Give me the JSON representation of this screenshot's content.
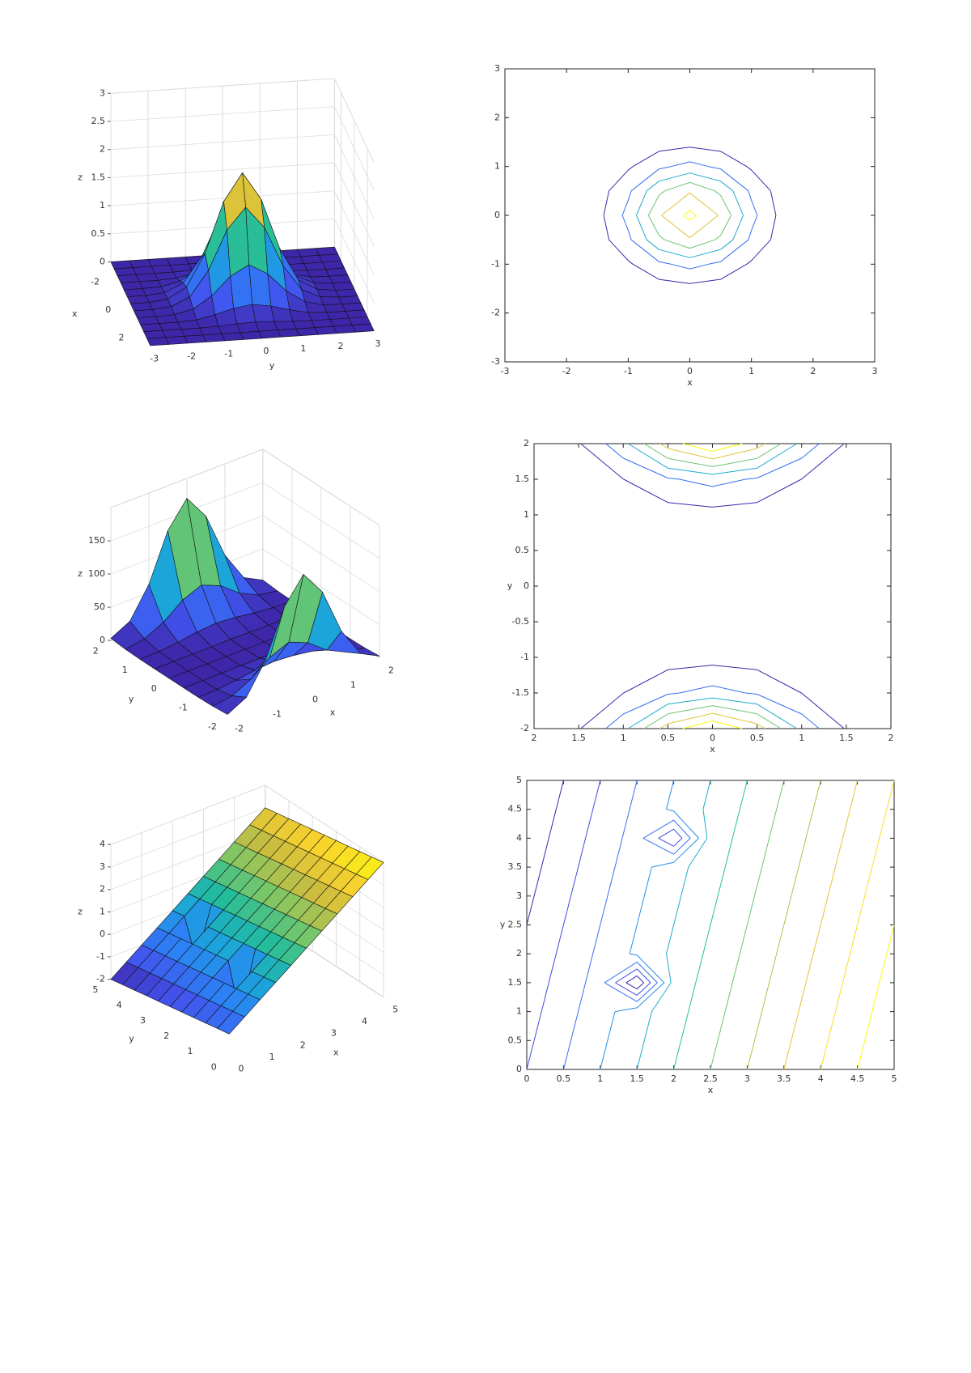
{
  "chart_data": [
    {
      "type": "surface",
      "xlabel": "x",
      "ylabel": "y",
      "zlabel": "z",
      "x": [
        -3,
        -2.5,
        -2,
        -1.5,
        -1,
        -0.5,
        0,
        0.5,
        1,
        1.5,
        2,
        2.5,
        3
      ],
      "y": [
        -3,
        -2.5,
        -2,
        -1.5,
        -1,
        -0.5,
        0,
        0.5,
        1,
        1.5,
        2,
        2.5,
        3
      ],
      "z": [
        [
          0,
          0,
          0,
          0,
          0,
          0,
          0,
          0,
          0,
          0,
          0,
          0,
          0
        ],
        [
          0,
          0,
          0,
          0,
          0,
          0,
          0,
          0,
          0,
          0,
          0,
          0,
          0
        ],
        [
          0,
          0,
          0,
          0,
          0.01,
          0.03,
          0.04,
          0.03,
          0.01,
          0,
          0,
          0,
          0
        ],
        [
          0,
          0,
          0,
          0.02,
          0.09,
          0.18,
          0.23,
          0.18,
          0.09,
          0.02,
          0,
          0,
          0
        ],
        [
          0,
          0,
          0.01,
          0.09,
          0.3,
          0.63,
          0.81,
          0.63,
          0.3,
          0.09,
          0.01,
          0,
          0
        ],
        [
          0,
          0,
          0.03,
          0.18,
          0.63,
          1.33,
          1.71,
          1.33,
          0.63,
          0.18,
          0.03,
          0,
          0
        ],
        [
          0,
          0,
          0.04,
          0.23,
          0.81,
          1.71,
          2.2,
          1.71,
          0.81,
          0.23,
          0.04,
          0,
          0
        ],
        [
          0,
          0,
          0.03,
          0.18,
          0.63,
          1.33,
          1.71,
          1.33,
          0.63,
          0.18,
          0.03,
          0,
          0
        ],
        [
          0,
          0,
          0.01,
          0.09,
          0.3,
          0.63,
          0.81,
          0.63,
          0.3,
          0.09,
          0.01,
          0,
          0
        ],
        [
          0,
          0,
          0,
          0.02,
          0.09,
          0.18,
          0.23,
          0.18,
          0.09,
          0.02,
          0,
          0,
          0
        ],
        [
          0,
          0,
          0,
          0,
          0.01,
          0.03,
          0.04,
          0.03,
          0.01,
          0,
          0,
          0,
          0
        ],
        [
          0,
          0,
          0,
          0,
          0,
          0,
          0,
          0,
          0,
          0,
          0,
          0,
          0
        ],
        [
          0,
          0,
          0,
          0,
          0,
          0,
          0,
          0,
          0,
          0,
          0,
          0,
          0
        ]
      ],
      "xlim": [
        -3,
        3
      ],
      "ylim": [
        -3,
        3
      ],
      "zlim": [
        0,
        3
      ],
      "xticks": [
        -2,
        0,
        2
      ],
      "yticks": [
        -3,
        -2,
        -1,
        0,
        1,
        2,
        3
      ],
      "zticks": [
        0,
        0.5,
        1,
        1.5,
        2,
        2.5,
        3
      ],
      "grid": true,
      "colormap": [
        "#3e26a8",
        "#4254ee",
        "#2c81f5",
        "#1ba5d9",
        "#24bd9c",
        "#7dc766",
        "#cdbd3e",
        "#f9d22e",
        "#f9fb0e"
      ]
    },
    {
      "type": "contour",
      "xlabel": "x",
      "x": [
        -3,
        -2.5,
        -2,
        -1.5,
        -1,
        -0.5,
        0,
        0.5,
        1,
        1.5,
        2,
        2.5,
        3
      ],
      "y": [
        -3,
        -2.5,
        -2,
        -1.5,
        -1,
        -0.5,
        0,
        0.5,
        1,
        1.5,
        2,
        2.5,
        3
      ],
      "z": [
        [
          0,
          0,
          0,
          0,
          0,
          0,
          0,
          0,
          0,
          0,
          0,
          0,
          0
        ],
        [
          0,
          0,
          0,
          0,
          0,
          0,
          0,
          0,
          0,
          0,
          0,
          0,
          0
        ],
        [
          0,
          0,
          0,
          0,
          0.01,
          0.03,
          0.04,
          0.03,
          0.01,
          0,
          0,
          0,
          0
        ],
        [
          0,
          0,
          0,
          0.02,
          0.09,
          0.18,
          0.23,
          0.18,
          0.09,
          0.02,
          0,
          0,
          0
        ],
        [
          0,
          0,
          0.01,
          0.09,
          0.3,
          0.63,
          0.81,
          0.63,
          0.3,
          0.09,
          0.01,
          0,
          0
        ],
        [
          0,
          0,
          0.03,
          0.18,
          0.63,
          1.33,
          1.71,
          1.33,
          0.63,
          0.18,
          0.03,
          0,
          0
        ],
        [
          0,
          0,
          0.04,
          0.23,
          0.81,
          1.71,
          2.2,
          1.71,
          0.81,
          0.23,
          0.04,
          0,
          0
        ],
        [
          0,
          0,
          0.03,
          0.18,
          0.63,
          1.33,
          1.71,
          1.33,
          0.63,
          0.18,
          0.03,
          0,
          0
        ],
        [
          0,
          0,
          0.01,
          0.09,
          0.3,
          0.63,
          0.81,
          0.63,
          0.3,
          0.09,
          0.01,
          0,
          0
        ],
        [
          0,
          0,
          0,
          0.02,
          0.09,
          0.18,
          0.23,
          0.18,
          0.09,
          0.02,
          0,
          0,
          0
        ],
        [
          0,
          0,
          0,
          0,
          0.01,
          0.03,
          0.04,
          0.03,
          0.01,
          0,
          0,
          0,
          0
        ],
        [
          0,
          0,
          0,
          0,
          0,
          0,
          0,
          0,
          0,
          0,
          0,
          0,
          0
        ],
        [
          0,
          0,
          0,
          0,
          0,
          0,
          0,
          0,
          0,
          0,
          0,
          0,
          0
        ]
      ],
      "levels": [
        0.35,
        0.7,
        1.05,
        1.4,
        1.75,
        2.1
      ],
      "xlim": [
        -3,
        3
      ],
      "ylim": [
        -3,
        3
      ],
      "xticks": [
        -3,
        -2,
        -1,
        0,
        1,
        2,
        3
      ],
      "yticks": [
        -3,
        -2,
        -1,
        0,
        1,
        2,
        3
      ],
      "colormap": [
        "#3e26a8",
        "#4254ee",
        "#2c81f5",
        "#1ba5d9",
        "#24bd9c",
        "#7dc766",
        "#cdbd3e",
        "#f9d22e",
        "#f9fb0e"
      ]
    },
    {
      "type": "surface",
      "xlabel": "x",
      "ylabel": "y",
      "zlabel": "z",
      "x": [
        -2,
        -1.5,
        -1,
        -0.5,
        0,
        0.5,
        1,
        1.5,
        2
      ],
      "y": [
        -2,
        -1.5,
        -1,
        -0.5,
        0,
        0.5,
        1,
        1.5,
        2
      ],
      "z": [
        [
          3.1,
          17.9,
          62.5,
          132.4,
          170,
          132.4,
          62.5,
          17.9,
          3.1
        ],
        [
          1,
          5.7,
          19.8,
          41.9,
          53.8,
          41.9,
          19.8,
          5.7,
          1
        ],
        [
          0.2,
          1.1,
          3.9,
          8.3,
          10.6,
          8.3,
          3.9,
          1.1,
          0.2
        ],
        [
          0,
          0.1,
          0.2,
          0.5,
          0.7,
          0.5,
          0.2,
          0.1,
          0
        ],
        [
          0,
          0,
          0,
          0,
          0,
          0,
          0,
          0,
          0
        ],
        [
          0,
          0.1,
          0.2,
          0.5,
          0.7,
          0.5,
          0.2,
          0.1,
          0
        ],
        [
          0.2,
          1.1,
          3.9,
          8.3,
          10.6,
          8.3,
          3.9,
          1.1,
          0.2
        ],
        [
          1,
          5.7,
          19.8,
          41.9,
          53.8,
          41.9,
          19.8,
          5.7,
          1
        ],
        [
          3.1,
          17.9,
          62.5,
          132.4,
          170,
          132.4,
          62.5,
          17.9,
          3.1
        ]
      ],
      "xlim": [
        -2,
        2
      ],
      "ylim": [
        -2,
        2
      ],
      "zlim": [
        0,
        200
      ],
      "xticks": [
        -2,
        -1,
        0,
        1,
        2
      ],
      "yticks": [
        -2,
        -1,
        0,
        1,
        2
      ],
      "zticks": [
        0,
        50,
        100,
        150
      ],
      "grid": true,
      "colormap": [
        "#3e26a8",
        "#4254ee",
        "#2c81f5",
        "#1ba5d9",
        "#24bd9c",
        "#7dc766",
        "#cdbd3e",
        "#f9d22e",
        "#f9fb0e"
      ]
    },
    {
      "type": "contour",
      "xlabel": "x",
      "ylabel": "y",
      "x": [
        -2,
        -1.5,
        -1,
        -0.5,
        0,
        0.5,
        1,
        1.5,
        2
      ],
      "y": [
        -2,
        -1.5,
        -1,
        -0.5,
        0,
        0.5,
        1,
        1.5,
        2
      ],
      "z": [
        [
          3.1,
          17.9,
          62.5,
          132.4,
          170,
          132.4,
          62.5,
          17.9,
          3.1
        ],
        [
          1,
          5.7,
          19.8,
          41.9,
          53.8,
          41.9,
          19.8,
          5.7,
          1
        ],
        [
          0.2,
          1.1,
          3.9,
          8.3,
          10.6,
          8.3,
          3.9,
          1.1,
          0.2
        ],
        [
          0,
          0.1,
          0.2,
          0.5,
          0.7,
          0.5,
          0.2,
          0.1,
          0
        ],
        [
          0,
          0,
          0,
          0,
          0,
          0,
          0,
          0,
          0
        ],
        [
          0,
          0.1,
          0.2,
          0.5,
          0.7,
          0.5,
          0.2,
          0.1,
          0
        ],
        [
          0.2,
          1.1,
          3.9,
          8.3,
          10.6,
          8.3,
          3.9,
          1.1,
          0.2
        ],
        [
          1,
          5.7,
          19.8,
          41.9,
          53.8,
          41.9,
          19.8,
          5.7,
          1
        ],
        [
          3.1,
          17.9,
          62.5,
          132.4,
          170,
          132.4,
          62.5,
          17.9,
          3.1
        ]
      ],
      "levels": [
        20,
        45,
        70,
        95,
        120,
        145
      ],
      "xlim": [
        -2,
        2
      ],
      "ylim": [
        -2,
        2
      ],
      "xticks": [
        {
          "value": -2,
          "label": "2"
        },
        {
          "value": -1.5,
          "label": "1.5"
        },
        {
          "value": -1,
          "label": "1"
        },
        {
          "value": -0.5,
          "label": "0.5"
        },
        0,
        0.5,
        1,
        1.5,
        2
      ],
      "yticks": [
        -2,
        -1.5,
        -1,
        -0.5,
        0,
        0.5,
        1,
        1.5,
        2
      ],
      "colormap": [
        "#3e26a8",
        "#4254ee",
        "#2c81f5",
        "#1ba5d9",
        "#24bd9c",
        "#7dc766",
        "#cdbd3e",
        "#f9d22e",
        "#f9fb0e"
      ]
    },
    {
      "type": "surface",
      "xlabel": "x",
      "ylabel": "y",
      "zlabel": "z",
      "x": [
        0,
        0.5,
        1,
        1.5,
        2,
        2.5,
        3,
        3.5,
        4,
        4.5,
        5
      ],
      "y": [
        0,
        0.5,
        1,
        1.5,
        2,
        2.5,
        3,
        3.5,
        4,
        4.5,
        5
      ],
      "z": [
        [
          -1,
          -0.5,
          0,
          0.5,
          1,
          1.5,
          2,
          2.5,
          3,
          3.5,
          4
        ],
        [
          -1.1,
          -0.6,
          -0.1,
          0.4,
          0.9,
          1.4,
          1.9,
          2.4,
          2.9,
          3.4,
          3.9
        ],
        [
          -1.2,
          -0.7,
          -0.2,
          0.3,
          0.8,
          1.3,
          1.8,
          2.3,
          2.8,
          3.3,
          3.8
        ],
        [
          -1.3,
          -0.8,
          -0.3,
          -2,
          0.7,
          1.2,
          1.7,
          2.2,
          2.7,
          3.2,
          3.7
        ],
        [
          -1.4,
          -0.9,
          -0.4,
          0.1,
          0.6,
          1.1,
          1.6,
          2.1,
          2.6,
          3.1,
          3.6
        ],
        [
          -1.5,
          -1,
          -0.5,
          0,
          0.5,
          1,
          1.5,
          2,
          2.5,
          3,
          3.5
        ],
        [
          -1.6,
          -1.1,
          -0.6,
          -0.1,
          0.4,
          0.9,
          1.4,
          1.9,
          2.4,
          2.9,
          3.4
        ],
        [
          -1.7,
          -1.2,
          -0.7,
          -0.2,
          0.3,
          0.8,
          1.3,
          1.8,
          2.3,
          2.8,
          3.3
        ],
        [
          -1.8,
          -1.3,
          -0.8,
          -0.3,
          -1.5,
          0.7,
          1.2,
          1.7,
          2.2,
          2.7,
          3.2
        ],
        [
          -1.9,
          -1.4,
          -0.9,
          -0.4,
          0.1,
          0.6,
          1.1,
          1.6,
          2.1,
          2.6,
          3.1
        ],
        [
          -2,
          -1.5,
          -1,
          -0.5,
          0,
          0.5,
          1,
          1.5,
          2,
          2.5,
          3
        ]
      ],
      "xlim": [
        0,
        5
      ],
      "ylim": [
        0,
        5
      ],
      "zlim": [
        -2,
        4
      ],
      "xticks": [
        0,
        1,
        2,
        3,
        4,
        5
      ],
      "yticks": [
        0,
        1,
        2,
        3,
        4,
        5
      ],
      "zticks": [
        -2,
        -1,
        0,
        1,
        2,
        3,
        4
      ],
      "grid": true,
      "colormap": [
        "#3e26a8",
        "#4254ee",
        "#2c81f5",
        "#1ba5d9",
        "#24bd9c",
        "#7dc766",
        "#cdbd3e",
        "#f9d22e",
        "#f9fb0e"
      ]
    },
    {
      "type": "contour",
      "xlabel": "x",
      "ylabel": "y",
      "x": [
        0,
        0.5,
        1,
        1.5,
        2,
        2.5,
        3,
        3.5,
        4,
        4.5,
        5
      ],
      "y": [
        0,
        0.5,
        1,
        1.5,
        2,
        2.5,
        3,
        3.5,
        4,
        4.5,
        5
      ],
      "z": [
        [
          -1,
          -0.5,
          0,
          0.5,
          1,
          1.5,
          2,
          2.5,
          3,
          3.5,
          4
        ],
        [
          -1.1,
          -0.6,
          -0.1,
          0.4,
          0.9,
          1.4,
          1.9,
          2.4,
          2.9,
          3.4,
          3.9
        ],
        [
          -1.2,
          -0.7,
          -0.2,
          0.3,
          0.8,
          1.3,
          1.8,
          2.3,
          2.8,
          3.3,
          3.8
        ],
        [
          -1.3,
          -0.8,
          -0.3,
          -2,
          0.7,
          1.2,
          1.7,
          2.2,
          2.7,
          3.2,
          3.7
        ],
        [
          -1.4,
          -0.9,
          -0.4,
          0.1,
          0.6,
          1.1,
          1.6,
          2.1,
          2.6,
          3.1,
          3.6
        ],
        [
          -1.5,
          -1,
          -0.5,
          0,
          0.5,
          1,
          1.5,
          2,
          2.5,
          3,
          3.5
        ],
        [
          -1.6,
          -1.1,
          -0.6,
          -0.1,
          0.4,
          0.9,
          1.4,
          1.9,
          2.4,
          2.9,
          3.4
        ],
        [
          -1.7,
          -1.2,
          -0.7,
          -0.2,
          0.3,
          0.8,
          1.3,
          1.8,
          2.3,
          2.8,
          3.3
        ],
        [
          -1.8,
          -1.3,
          -0.8,
          -0.3,
          -1.5,
          0.7,
          1.2,
          1.7,
          2.2,
          2.7,
          3.2
        ],
        [
          -1.9,
          -1.4,
          -0.9,
          -0.4,
          0.1,
          0.6,
          1.1,
          1.6,
          2.1,
          2.6,
          3.1
        ],
        [
          -2,
          -1.5,
          -1,
          -0.5,
          0,
          0.5,
          1,
          1.5,
          2,
          2.5,
          3
        ]
      ],
      "levels": [
        -1.5,
        -1,
        -0.5,
        0,
        0.5,
        1,
        1.5,
        2,
        2.5,
        3,
        3.5
      ],
      "xlim": [
        0,
        5
      ],
      "ylim": [
        0,
        5
      ],
      "xticks": [
        0,
        0.5,
        1,
        1.5,
        2,
        2.5,
        3,
        3.5,
        4,
        4.5,
        5
      ],
      "yticks": [
        0,
        0.5,
        1,
        1.5,
        2,
        2.5,
        3,
        3.5,
        4,
        4.5,
        5
      ],
      "colormap": [
        "#3e26a8",
        "#4254ee",
        "#2c81f5",
        "#1ba5d9",
        "#24bd9c",
        "#7dc766",
        "#cdbd3e",
        "#f9d22e",
        "#f9fb0e"
      ]
    }
  ]
}
